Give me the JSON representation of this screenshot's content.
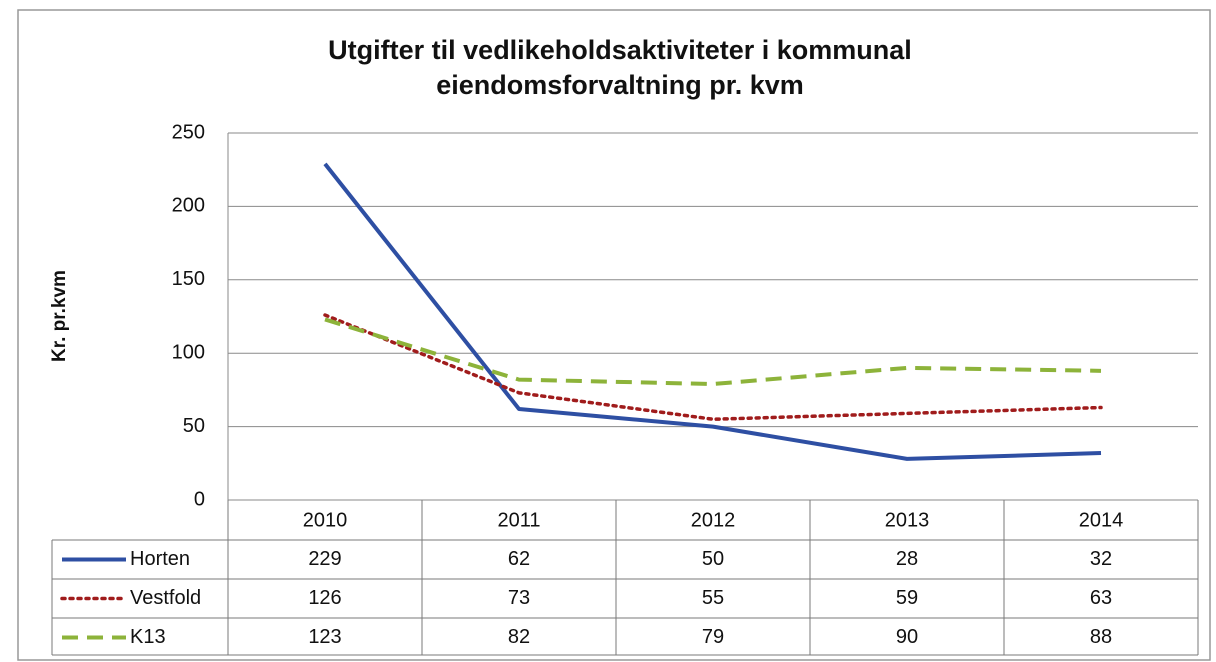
{
  "chart_data": {
    "type": "line",
    "title": [
      "Utgifter til vedlikeholdsaktiviteter i kommunal",
      "eiendomsforvaltning pr. kvm"
    ],
    "y_label": "Kr. pr.kvm",
    "categories": [
      "2010",
      "2011",
      "2012",
      "2013",
      "2014"
    ],
    "series": [
      {
        "name": "Horten",
        "color": "#2e4fa3",
        "dash": "solid",
        "values": [
          229,
          62,
          50,
          28,
          32
        ]
      },
      {
        "name": "Vestfold",
        "color": "#a01c1c",
        "dash": "dotted",
        "values": [
          126,
          73,
          55,
          59,
          63
        ]
      },
      {
        "name": "K13",
        "color": "#8db33a",
        "dash": "dashed",
        "values": [
          123,
          82,
          79,
          90,
          88
        ]
      }
    ],
    "ylim": [
      0,
      250
    ],
    "yticks": [
      0,
      50,
      100,
      150,
      200,
      250
    ],
    "grid": true
  }
}
